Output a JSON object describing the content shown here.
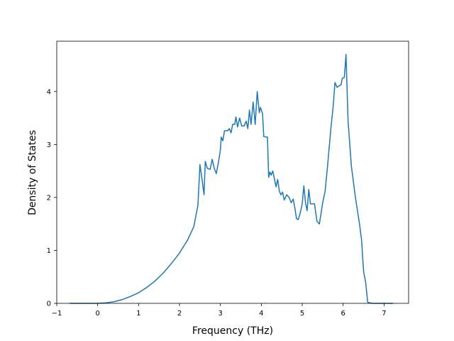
{
  "chart_data": {
    "type": "line",
    "title": "",
    "xlabel": "Frequency (THz)",
    "ylabel": "Density of States",
    "xlim": [
      -1.0,
      7.6
    ],
    "ylim": [
      0,
      4.95
    ],
    "xticks": [
      -1,
      0,
      1,
      2,
      3,
      4,
      5,
      6,
      7
    ],
    "yticks": [
      0,
      1,
      2,
      3,
      4
    ],
    "grid": false,
    "legend": "none",
    "series": [
      {
        "color": "#1f77b4",
        "points": [
          [
            -0.68,
            0
          ],
          [
            0.0,
            0
          ],
          [
            0.2,
            0.01
          ],
          [
            0.4,
            0.03
          ],
          [
            0.6,
            0.07
          ],
          [
            0.8,
            0.13
          ],
          [
            1.0,
            0.2
          ],
          [
            1.2,
            0.3
          ],
          [
            1.4,
            0.42
          ],
          [
            1.6,
            0.57
          ],
          [
            1.8,
            0.75
          ],
          [
            2.0,
            0.95
          ],
          [
            2.2,
            1.2
          ],
          [
            2.35,
            1.45
          ],
          [
            2.45,
            1.85
          ],
          [
            2.5,
            2.62
          ],
          [
            2.55,
            2.35
          ],
          [
            2.6,
            2.05
          ],
          [
            2.63,
            2.68
          ],
          [
            2.68,
            2.55
          ],
          [
            2.75,
            2.53
          ],
          [
            2.8,
            2.72
          ],
          [
            2.85,
            2.55
          ],
          [
            2.9,
            2.45
          ],
          [
            2.95,
            2.65
          ],
          [
            3.0,
            2.9
          ],
          [
            3.02,
            3.14
          ],
          [
            3.06,
            3.07
          ],
          [
            3.1,
            3.26
          ],
          [
            3.18,
            3.26
          ],
          [
            3.22,
            3.3
          ],
          [
            3.26,
            3.22
          ],
          [
            3.3,
            3.38
          ],
          [
            3.35,
            3.38
          ],
          [
            3.38,
            3.52
          ],
          [
            3.42,
            3.33
          ],
          [
            3.47,
            3.5
          ],
          [
            3.52,
            3.35
          ],
          [
            3.58,
            3.35
          ],
          [
            3.63,
            3.44
          ],
          [
            3.67,
            3.3
          ],
          [
            3.71,
            3.65
          ],
          [
            3.75,
            3.38
          ],
          [
            3.8,
            3.8
          ],
          [
            3.85,
            3.38
          ],
          [
            3.9,
            4.0
          ],
          [
            3.95,
            3.6
          ],
          [
            3.98,
            3.7
          ],
          [
            4.03,
            3.58
          ],
          [
            4.06,
            3.15
          ],
          [
            4.12,
            3.14
          ],
          [
            4.15,
            3.14
          ],
          [
            4.18,
            2.38
          ],
          [
            4.21,
            2.48
          ],
          [
            4.24,
            2.42
          ],
          [
            4.28,
            2.5
          ],
          [
            4.32,
            2.35
          ],
          [
            4.36,
            2.2
          ],
          [
            4.4,
            2.34
          ],
          [
            4.44,
            2.12
          ],
          [
            4.48,
            2.05
          ],
          [
            4.52,
            2.1
          ],
          [
            4.56,
            1.95
          ],
          [
            4.62,
            2.05
          ],
          [
            4.68,
            2.0
          ],
          [
            4.73,
            1.9
          ],
          [
            4.78,
            1.97
          ],
          [
            4.82,
            1.8
          ],
          [
            4.86,
            1.6
          ],
          [
            4.9,
            1.58
          ],
          [
            4.95,
            1.7
          ],
          [
            5.0,
            1.88
          ],
          [
            5.04,
            2.22
          ],
          [
            5.08,
            1.9
          ],
          [
            5.12,
            1.75
          ],
          [
            5.16,
            2.15
          ],
          [
            5.2,
            1.88
          ],
          [
            5.3,
            1.88
          ],
          [
            5.36,
            1.55
          ],
          [
            5.42,
            1.5
          ],
          [
            5.5,
            1.9
          ],
          [
            5.56,
            2.12
          ],
          [
            5.62,
            2.6
          ],
          [
            5.7,
            3.3
          ],
          [
            5.76,
            3.75
          ],
          [
            5.8,
            4.17
          ],
          [
            5.85,
            4.08
          ],
          [
            5.95,
            4.13
          ],
          [
            5.98,
            4.25
          ],
          [
            6.03,
            4.27
          ],
          [
            6.07,
            4.7
          ],
          [
            6.12,
            3.45
          ],
          [
            6.2,
            2.6
          ],
          [
            6.3,
            2.0
          ],
          [
            6.4,
            1.5
          ],
          [
            6.45,
            1.2
          ],
          [
            6.5,
            0.6
          ],
          [
            6.55,
            0.4
          ],
          [
            6.6,
            0.02
          ],
          [
            6.7,
            0
          ],
          [
            7.22,
            0
          ]
        ]
      }
    ]
  }
}
